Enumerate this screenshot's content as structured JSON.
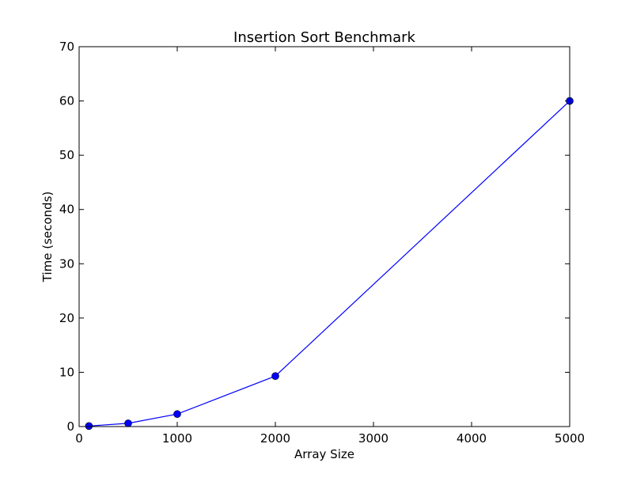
{
  "chart_data": {
    "type": "line",
    "title": "Insertion Sort Benchmark",
    "xlabel": "Array Size",
    "ylabel": "Time (seconds)",
    "xlim": [
      0,
      5000
    ],
    "ylim": [
      0,
      70
    ],
    "xticks": [
      0,
      1000,
      2000,
      3000,
      4000,
      5000
    ],
    "yticks": [
      0,
      10,
      20,
      30,
      40,
      50,
      60,
      70
    ],
    "grid": false,
    "legend": "none",
    "series": [
      {
        "color": "#0000ff",
        "marker": "circle",
        "x": [
          100,
          500,
          1000,
          2000,
          5000
        ],
        "y": [
          0.1,
          0.6,
          2.3,
          9.3,
          60.0
        ]
      }
    ]
  }
}
